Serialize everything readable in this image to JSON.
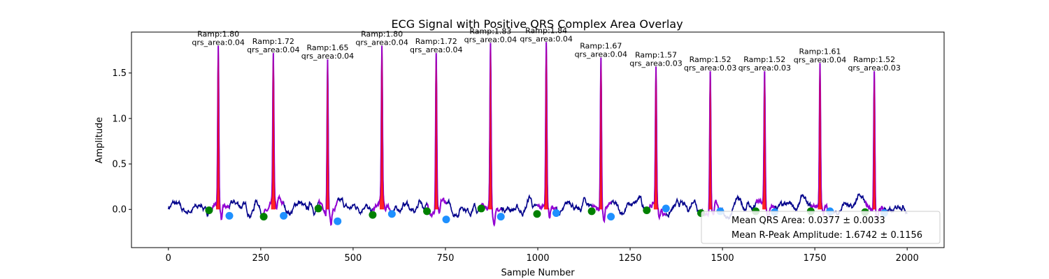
{
  "chart_data": {
    "type": "line",
    "title": "ECG Signal with Positive QRS Complex Area Overlay",
    "xlabel": "Sample Number",
    "ylabel": "Amplitude",
    "xlim": [
      -100,
      2100
    ],
    "ylim": [
      -0.42,
      1.95
    ],
    "xticks": [
      0,
      250,
      500,
      750,
      1000,
      1250,
      1500,
      1750,
      2000
    ],
    "yticks": [
      0.0,
      0.5,
      1.0,
      1.5
    ],
    "grid": false,
    "colors": {
      "signal": "#00008b",
      "qrs_segment": "#9400d3",
      "qrs_fill": "#ff0000",
      "q_marker": "#008000",
      "s_marker": "#1e90ff"
    },
    "r_peaks": [
      {
        "x": 135,
        "amp": 1.8,
        "label_ramp": "Ramp:1.80",
        "label_area": "qrs_area:0.04",
        "q_x": 110,
        "q_y": -0.01,
        "s_x": 165,
        "s_y": -0.07
      },
      {
        "x": 284,
        "amp": 1.72,
        "label_ramp": "Ramp:1.72",
        "label_area": "qrs_area:0.04",
        "q_x": 258,
        "q_y": -0.08,
        "s_x": 312,
        "s_y": -0.07
      },
      {
        "x": 431,
        "amp": 1.65,
        "label_ramp": "Ramp:1.65",
        "label_area": "qrs_area:0.04",
        "q_x": 406,
        "q_y": 0.01,
        "s_x": 458,
        "s_y": -0.13
      },
      {
        "x": 578,
        "amp": 1.8,
        "label_ramp": "Ramp:1.80",
        "label_area": "qrs_area:0.04",
        "q_x": 553,
        "q_y": -0.06,
        "s_x": 605,
        "s_y": -0.05
      },
      {
        "x": 725,
        "amp": 1.72,
        "label_ramp": "Ramp:1.72",
        "label_area": "qrs_area:0.04",
        "q_x": 700,
        "q_y": -0.02,
        "s_x": 752,
        "s_y": -0.11
      },
      {
        "x": 872,
        "amp": 1.83,
        "label_ramp": "Ramp:1.83",
        "label_area": "qrs_area:0.04",
        "q_x": 847,
        "q_y": 0.01,
        "s_x": 900,
        "s_y": -0.08
      },
      {
        "x": 1023,
        "amp": 1.84,
        "label_ramp": "Ramp:1.84",
        "label_area": "qrs_area:0.04",
        "q_x": 998,
        "q_y": -0.05,
        "s_x": 1050,
        "s_y": -0.04
      },
      {
        "x": 1171,
        "amp": 1.67,
        "label_ramp": "Ramp:1.67",
        "label_area": "qrs_area:0.04",
        "q_x": 1146,
        "q_y": -0.02,
        "s_x": 1198,
        "s_y": -0.08
      },
      {
        "x": 1320,
        "amp": 1.57,
        "label_ramp": "Ramp:1.57",
        "label_area": "qrs_area:0.03",
        "q_x": 1295,
        "q_y": -0.01,
        "s_x": 1347,
        "s_y": 0.01
      },
      {
        "x": 1467,
        "amp": 1.52,
        "label_ramp": "Ramp:1.52",
        "label_area": "qrs_area:0.03",
        "q_x": 1442,
        "q_y": -0.04,
        "s_x": 1494,
        "s_y": -0.02
      },
      {
        "x": 1614,
        "amp": 1.52,
        "label_ramp": "Ramp:1.52",
        "label_area": "qrs_area:0.03",
        "q_x": 1590,
        "q_y": -0.02,
        "s_x": 1641,
        "s_y": -0.03
      },
      {
        "x": 1764,
        "amp": 1.61,
        "label_ramp": "Ramp:1.61",
        "label_area": "qrs_area:0.04",
        "q_x": 1739,
        "q_y": -0.02,
        "s_x": 1791,
        "s_y": -0.02
      },
      {
        "x": 1911,
        "amp": 1.52,
        "label_ramp": "Ramp:1.52",
        "label_area": "qrs_area:0.03",
        "q_x": 1886,
        "q_y": -0.03,
        "s_x": 1938,
        "s_y": -0.04
      }
    ],
    "legend": {
      "placement": "lower right",
      "entries": [
        "Mean QRS Area: 0.0377 ± 0.0033",
        "Mean R-Peak Amplitude: 1.6742 ± 0.1156"
      ]
    }
  }
}
